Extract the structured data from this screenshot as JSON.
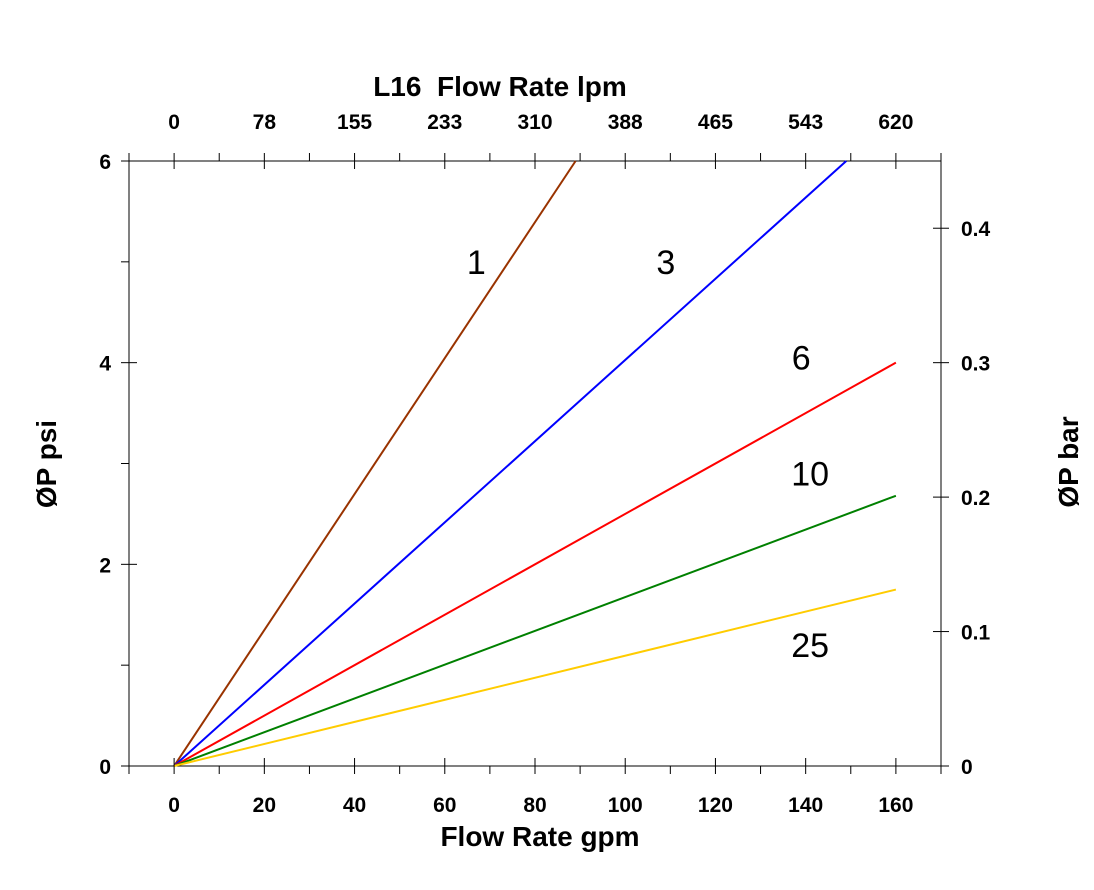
{
  "chart_data": {
    "type": "line",
    "title": "L16  Flow Rate lpm",
    "xlabel": "Flow Rate gpm",
    "ylabel": "ØP psi",
    "ylabel_right": "ØP bar",
    "xlim": [
      -10,
      170
    ],
    "ylim": [
      0,
      6
    ],
    "x_ticks": [
      "0",
      "20",
      "40",
      "60",
      "80",
      "100",
      "120",
      "140",
      "160"
    ],
    "x_tick_values": [
      0,
      20,
      40,
      60,
      80,
      100,
      120,
      140,
      160
    ],
    "y_ticks": [
      "0",
      "2",
      "4",
      "6"
    ],
    "y_tick_values": [
      0,
      2,
      4,
      6
    ],
    "top_ticks": [
      "0",
      "78",
      "155",
      "233",
      "310",
      "388",
      "465",
      "543",
      "620"
    ],
    "top_tick_values": [
      0,
      20,
      40,
      60,
      80,
      100,
      120,
      140,
      160
    ],
    "right_ticks": [
      "0",
      "0.1",
      "0.2",
      "0.3",
      "0.4"
    ],
    "right_tick_psi": [
      0,
      1.3333,
      2.6667,
      4.0,
      5.3333
    ],
    "series": [
      {
        "name": "1",
        "color": "#993300",
        "x": [
          0,
          89
        ],
        "y": [
          0,
          6
        ],
        "label_at": [
          67,
          5.0
        ]
      },
      {
        "name": "3",
        "color": "#0000ff",
        "x": [
          0,
          149
        ],
        "y": [
          0,
          6
        ],
        "label_at": [
          109,
          5.0
        ]
      },
      {
        "name": "6",
        "color": "#ff0000",
        "x": [
          0,
          160
        ],
        "y": [
          0,
          4.0
        ],
        "label_at": [
          139,
          4.05
        ]
      },
      {
        "name": "10",
        "color": "#008000",
        "x": [
          0,
          160
        ],
        "y": [
          0,
          2.68
        ],
        "label_at": [
          141,
          2.9
        ]
      },
      {
        "name": "25",
        "color": "#ffcc00",
        "x": [
          0,
          160
        ],
        "y": [
          0,
          1.75
        ],
        "label_at": [
          141,
          1.2
        ]
      }
    ]
  }
}
